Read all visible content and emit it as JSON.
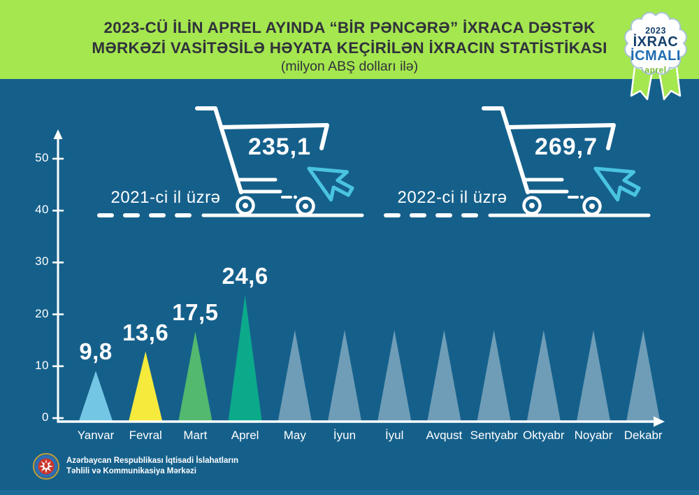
{
  "header": {
    "title_line1": "2023-CÜ İLİN APREL AYINDA “BİR PƏNCƏRƏ” İXRACA DƏSTƏK",
    "title_line2": "MƏRKƏZİ VASİTƏSİLƏ HƏYATA KEÇİRİLƏN İXRACIN STATİSTİKASI",
    "subtitle": "(milyon ABŞ dolları ilə)"
  },
  "badge": {
    "year": "2023",
    "line1": "İXRAC",
    "line2": "İCMALI",
    "month": "aprel"
  },
  "chart_data": {
    "type": "bar",
    "title": "2023-cü ilin aprel ayında “Bir Pəncərə” İxraca Dəstək Mərkəzi vasitəsilə həyata keçirilən ixracın statistikası",
    "unit": "milyon ABŞ dolları ilə",
    "categories": [
      "Yanvar",
      "Fevral",
      "Mart",
      "Aprel",
      "May",
      "İyun",
      "İyul",
      "Avqust",
      "Sentyabr",
      "Oktyabr",
      "Noyabr",
      "Dekabr"
    ],
    "values": [
      9.8,
      13.6,
      17.5,
      24.6,
      null,
      null,
      null,
      null,
      null,
      null,
      null,
      null
    ],
    "value_labels": [
      "9,8",
      "13,6",
      "17,5",
      "24,6",
      "",
      "",
      "",
      "",
      "",
      "",
      "",
      ""
    ],
    "colors": [
      "#74C7E4",
      "#F6EA3C",
      "#53B96E",
      "#0BAA8B",
      "#6F9DB7",
      "#6F9DB7",
      "#6F9DB7",
      "#6F9DB7",
      "#6F9DB7",
      "#6F9DB7",
      "#6F9DB7",
      "#6F9DB7"
    ],
    "y_ticks": [
      0,
      10,
      20,
      30,
      40,
      50
    ],
    "ylim": [
      0,
      55
    ],
    "grid": false,
    "annual_totals": [
      {
        "year": "2021",
        "label": "2021-ci il üzrə",
        "value": 235.1,
        "value_label": "235,1"
      },
      {
        "year": "2022",
        "label": "2022-ci il üzrə",
        "value": 269.7,
        "value_label": "269,7"
      }
    ]
  },
  "footer": {
    "org_line1": "Azərbaycan Respublikası İqtisadi İslahatların",
    "org_line2": "Təhlili və Kommunikasiya Mərkəzi"
  },
  "colors": {
    "background": "#15608B",
    "header_bg": "#A5E74F",
    "accent_cyan": "#4AC4E0",
    "white": "#FFFFFF"
  }
}
